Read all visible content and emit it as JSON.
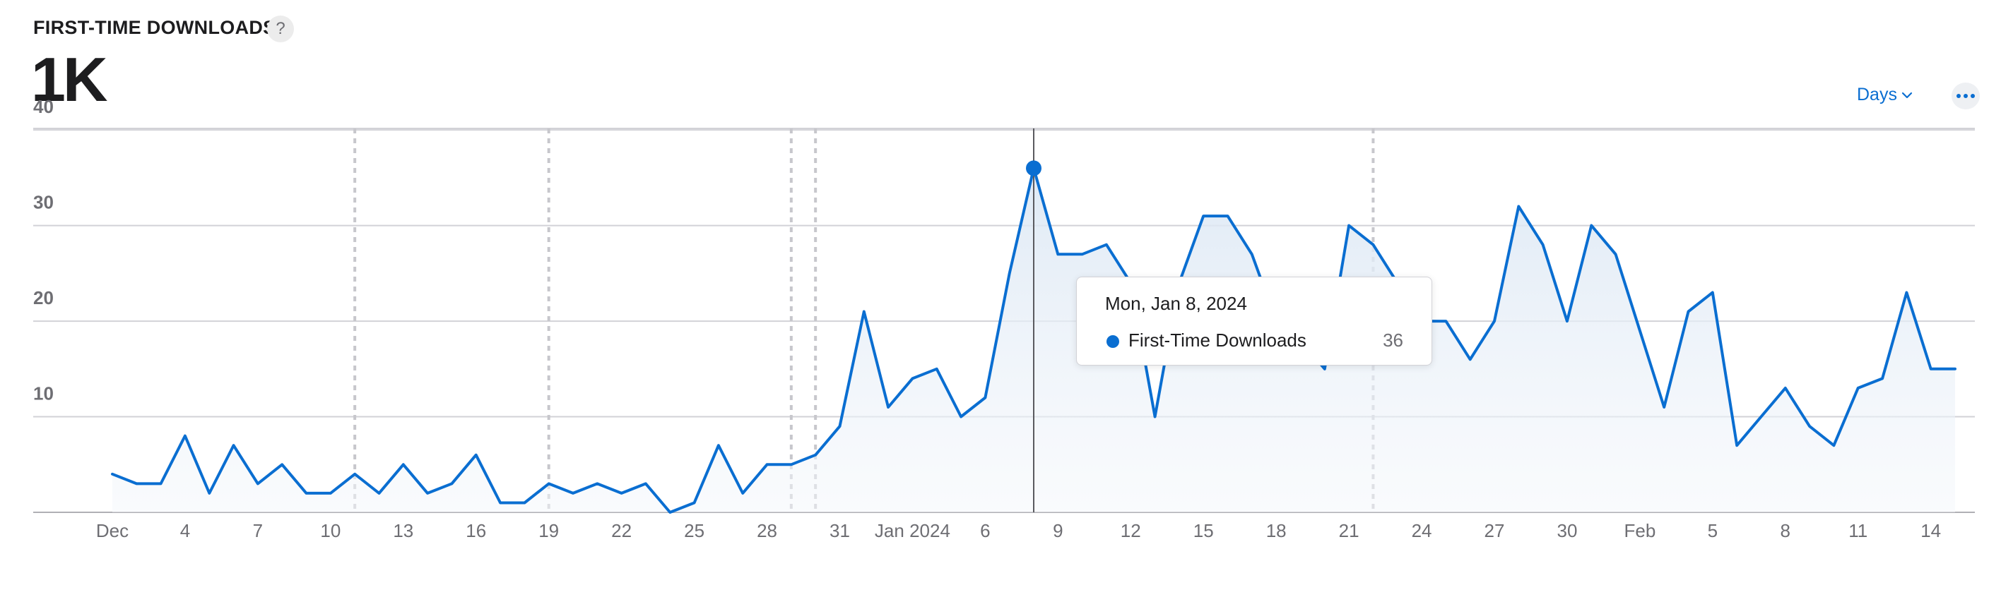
{
  "header": {
    "title": "FIRST-TIME DOWNLOADS",
    "help_glyph": "?",
    "help_icon": "question-mark-icon",
    "total_value": "1K"
  },
  "controls": {
    "period_label": "Days",
    "period_icon": "chevron-down-icon",
    "more_icon": "ellipsis-icon"
  },
  "colors": {
    "series": "#0a6ed1",
    "grid": "#d2d2d7",
    "area_fill": "#eef3f9",
    "tooltip_border": "#d2d2d7"
  },
  "tooltip": {
    "date": "Mon, Jan 8, 2024",
    "series_name": "First-Time Downloads",
    "value": "36"
  },
  "chart_data": {
    "type": "area",
    "title": "",
    "xlabel": "",
    "ylabel": "",
    "x_range": [
      "2023-12-01",
      "2024-02-15"
    ],
    "ylim": [
      0,
      40
    ],
    "y_ticks": [
      10,
      20,
      30,
      40
    ],
    "x_ticks": [
      {
        "date": "2023-12-01",
        "label": "Dec"
      },
      {
        "date": "2023-12-04",
        "label": "4"
      },
      {
        "date": "2023-12-07",
        "label": "7"
      },
      {
        "date": "2023-12-10",
        "label": "10"
      },
      {
        "date": "2023-12-13",
        "label": "13"
      },
      {
        "date": "2023-12-16",
        "label": "16"
      },
      {
        "date": "2023-12-19",
        "label": "19"
      },
      {
        "date": "2023-12-22",
        "label": "22"
      },
      {
        "date": "2023-12-25",
        "label": "25"
      },
      {
        "date": "2023-12-28",
        "label": "28"
      },
      {
        "date": "2023-12-31",
        "label": "31"
      },
      {
        "date": "2024-01-03",
        "label": "Jan 2024"
      },
      {
        "date": "2024-01-06",
        "label": "6"
      },
      {
        "date": "2024-01-09",
        "label": "9"
      },
      {
        "date": "2024-01-12",
        "label": "12"
      },
      {
        "date": "2024-01-15",
        "label": "15"
      },
      {
        "date": "2024-01-18",
        "label": "18"
      },
      {
        "date": "2024-01-21",
        "label": "21"
      },
      {
        "date": "2024-01-24",
        "label": "24"
      },
      {
        "date": "2024-01-27",
        "label": "27"
      },
      {
        "date": "2024-01-30",
        "label": "30"
      },
      {
        "date": "2024-02-02",
        "label": "Feb"
      },
      {
        "date": "2024-02-05",
        "label": "5"
      },
      {
        "date": "2024-02-08",
        "label": "8"
      },
      {
        "date": "2024-02-11",
        "label": "11"
      },
      {
        "date": "2024-02-14",
        "label": "14"
      }
    ],
    "annotation_dates": [
      "2023-12-11",
      "2023-12-19",
      "2023-12-29",
      "2023-12-30",
      "2024-01-22"
    ],
    "highlight_date": "2024-01-08",
    "grid": true,
    "legend": "none",
    "series": [
      {
        "name": "First-Time Downloads",
        "points": [
          [
            "2023-12-01",
            4
          ],
          [
            "2023-12-02",
            3
          ],
          [
            "2023-12-03",
            3
          ],
          [
            "2023-12-04",
            8
          ],
          [
            "2023-12-05",
            2
          ],
          [
            "2023-12-06",
            7
          ],
          [
            "2023-12-07",
            3
          ],
          [
            "2023-12-08",
            5
          ],
          [
            "2023-12-09",
            2
          ],
          [
            "2023-12-10",
            2
          ],
          [
            "2023-12-11",
            4
          ],
          [
            "2023-12-12",
            2
          ],
          [
            "2023-12-13",
            5
          ],
          [
            "2023-12-14",
            2
          ],
          [
            "2023-12-15",
            3
          ],
          [
            "2023-12-16",
            6
          ],
          [
            "2023-12-17",
            1
          ],
          [
            "2023-12-18",
            1
          ],
          [
            "2023-12-19",
            3
          ],
          [
            "2023-12-20",
            2
          ],
          [
            "2023-12-21",
            3
          ],
          [
            "2023-12-22",
            2
          ],
          [
            "2023-12-23",
            3
          ],
          [
            "2023-12-24",
            0
          ],
          [
            "2023-12-25",
            1
          ],
          [
            "2023-12-26",
            7
          ],
          [
            "2023-12-27",
            2
          ],
          [
            "2023-12-28",
            5
          ],
          [
            "2023-12-29",
            5
          ],
          [
            "2023-12-30",
            6
          ],
          [
            "2023-12-31",
            9
          ],
          [
            "2024-01-01",
            21
          ],
          [
            "2024-01-02",
            11
          ],
          [
            "2024-01-03",
            14
          ],
          [
            "2024-01-04",
            15
          ],
          [
            "2024-01-05",
            10
          ],
          [
            "2024-01-06",
            12
          ],
          [
            "2024-01-07",
            25
          ],
          [
            "2024-01-08",
            36
          ],
          [
            "2024-01-09",
            27
          ],
          [
            "2024-01-10",
            27
          ],
          [
            "2024-01-11",
            28
          ],
          [
            "2024-01-12",
            24
          ],
          [
            "2024-01-13",
            10
          ],
          [
            "2024-01-14",
            24
          ],
          [
            "2024-01-15",
            31
          ],
          [
            "2024-01-16",
            31
          ],
          [
            "2024-01-17",
            27
          ],
          [
            "2024-01-18",
            20
          ],
          [
            "2024-01-19",
            18
          ],
          [
            "2024-01-20",
            15
          ],
          [
            "2024-01-21",
            30
          ],
          [
            "2024-01-22",
            28
          ],
          [
            "2024-01-23",
            24
          ],
          [
            "2024-01-24",
            20
          ],
          [
            "2024-01-25",
            20
          ],
          [
            "2024-01-26",
            16
          ],
          [
            "2024-01-27",
            20
          ],
          [
            "2024-01-28",
            32
          ],
          [
            "2024-01-29",
            28
          ],
          [
            "2024-01-30",
            20
          ],
          [
            "2024-01-31",
            30
          ],
          [
            "2024-02-01",
            27
          ],
          [
            "2024-02-02",
            19
          ],
          [
            "2024-02-03",
            11
          ],
          [
            "2024-02-04",
            21
          ],
          [
            "2024-02-05",
            23
          ],
          [
            "2024-02-06",
            7
          ],
          [
            "2024-02-07",
            10
          ],
          [
            "2024-02-08",
            13
          ],
          [
            "2024-02-09",
            9
          ],
          [
            "2024-02-10",
            7
          ],
          [
            "2024-02-11",
            13
          ],
          [
            "2024-02-12",
            14
          ],
          [
            "2024-02-13",
            23
          ],
          [
            "2024-02-14",
            15
          ],
          [
            "2024-02-15",
            15
          ]
        ]
      }
    ]
  }
}
